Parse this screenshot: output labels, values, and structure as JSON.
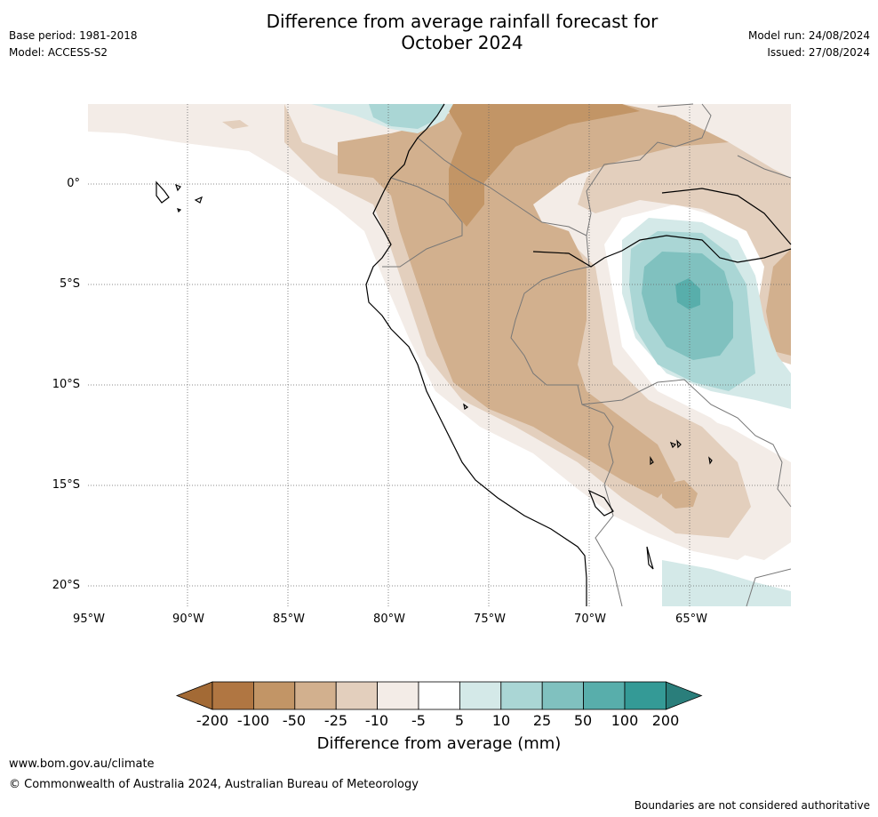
{
  "title_line1": "Difference from average rainfall forecast for",
  "title_line2": "October 2024",
  "meta": {
    "base_period": "Base period: 1981-2018",
    "model": "Model: ACCESS-S2",
    "model_run": "Model run: 24/08/2024",
    "issued": "Issued: 27/08/2024"
  },
  "lat_labels": [
    "0°",
    "5°S",
    "10°S",
    "15°S",
    "20°S"
  ],
  "lon_labels": [
    "95°W",
    "90°W",
    "85°W",
    "80°W",
    "75°W",
    "70°W",
    "65°W"
  ],
  "colorbar": {
    "ticks": [
      "-200",
      "-100",
      "-50",
      "-25",
      "-10",
      "-5",
      "5",
      "10",
      "25",
      "50",
      "100",
      "200"
    ],
    "colors": [
      "#a36a35",
      "#b07642",
      "#c29566",
      "#d2b08e",
      "#e3cfbd",
      "#f3ece7",
      "#ffffff",
      "#d4e9e8",
      "#aad6d5",
      "#80c1bf",
      "#58aeab",
      "#349a96",
      "#2a7e7b"
    ],
    "label": "Difference from average (mm)"
  },
  "footer": {
    "url": "www.bom.gov.au/climate",
    "copyright": "© Commonwealth of Australia 2024, Australian Bureau of Meteorology",
    "note": "Boundaries are not considered authoritative"
  }
}
